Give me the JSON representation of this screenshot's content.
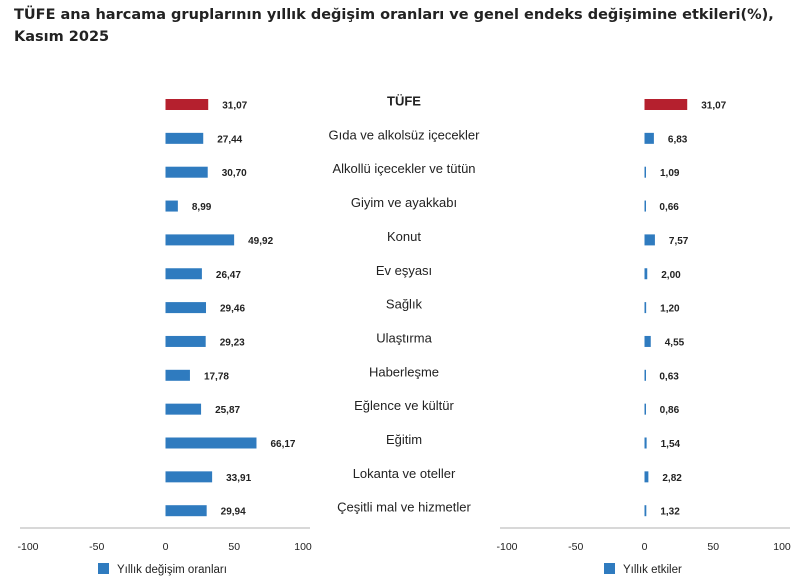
{
  "title": "TÜFE ana harcama gruplarının yıllık değişim oranları ve genel endeks değişimine etkileri(%), Kasım 2025",
  "colors": {
    "highlight": "#b5202e",
    "bar": "#2f7bbf",
    "axis": "#b0b0b0"
  },
  "chart_data": [
    {
      "type": "bar",
      "orientation": "horizontal",
      "categories": [
        "TÜFE",
        "Gıda ve alkolsüz içecekler",
        "Alkollü içecekler ve tütün",
        "Giyim ve ayakkabı",
        "Konut",
        "Ev eşyası",
        "Sağlık",
        "Ulaştırma",
        "Haberleşme",
        "Eğlence ve kültür",
        "Eğitim",
        "Lokanta ve oteller",
        "Çeşitli mal ve hizmetler"
      ],
      "values": [
        31.07,
        27.44,
        30.7,
        8.99,
        49.92,
        26.47,
        29.46,
        29.23,
        17.78,
        25.87,
        66.17,
        33.91,
        29.94
      ],
      "value_labels": [
        "31,07",
        "27,44",
        "30,70",
        "8,99",
        "49,92",
        "26,47",
        "29,46",
        "29,23",
        "17,78",
        "25,87",
        "66,17",
        "33,91",
        "29,94"
      ],
      "xlim": [
        -100,
        100
      ],
      "xticks": [
        "-100",
        "-50",
        "0",
        "50",
        "100"
      ],
      "legend": "Yıllık değişim oranları",
      "legend_position": "bottom-left"
    },
    {
      "type": "bar",
      "orientation": "horizontal",
      "categories": [
        "TÜFE",
        "Gıda ve alkolsüz içecekler",
        "Alkollü içecekler ve tütün",
        "Giyim ve ayakkabı",
        "Konut",
        "Ev eşyası",
        "Sağlık",
        "Ulaştırma",
        "Haberleşme",
        "Eğlence ve kültür",
        "Eğitim",
        "Lokanta ve oteller",
        "Çeşitli mal ve hizmetler"
      ],
      "values": [
        31.07,
        6.83,
        1.09,
        0.66,
        7.57,
        2.0,
        1.2,
        4.55,
        0.63,
        0.86,
        1.54,
        2.82,
        1.32
      ],
      "value_labels": [
        "31,07",
        "6,83",
        "1,09",
        "0,66",
        "7,57",
        "2,00",
        "1,20",
        "4,55",
        "0,63",
        "0,86",
        "1,54",
        "2,82",
        "1,32"
      ],
      "xlim": [
        -100,
        100
      ],
      "xticks": [
        "-100",
        "-50",
        "0",
        "50",
        "100"
      ],
      "legend": "Yıllık etkiler",
      "legend_position": "bottom-right"
    }
  ]
}
